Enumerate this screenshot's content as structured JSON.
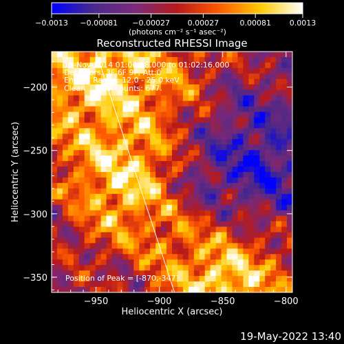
{
  "chart_data": {
    "type": "heatmap",
    "title": "Reconstructed RHESSI Image",
    "xlabel": "Heliocentric X (arcsec)",
    "ylabel": "Heliocentric Y (arcsec)",
    "xlim": [
      -985,
      -795
    ],
    "ylim": [
      -362,
      -172
    ],
    "xticks": [
      {
        "value": -950,
        "label": "−950"
      },
      {
        "value": -900,
        "label": "−900"
      },
      {
        "value": -850,
        "label": "−850"
      },
      {
        "value": -800,
        "label": "−800"
      }
    ],
    "yticks": [
      {
        "value": -200,
        "label": "−200"
      },
      {
        "value": -250,
        "label": "−250"
      },
      {
        "value": -300,
        "label": "−300"
      },
      {
        "value": -350,
        "label": "−350"
      }
    ],
    "colorbar": {
      "range": [
        -0.0013,
        0.0013
      ],
      "ticks": [
        {
          "value": -0.0013,
          "label": "−0.0013"
        },
        {
          "value": -0.00081,
          "label": "−0.00081"
        },
        {
          "value": -0.00027,
          "label": "−0.00027"
        },
        {
          "value": 0.00027,
          "label": "0.00027"
        },
        {
          "value": 0.00081,
          "label": "0.00081"
        },
        {
          "value": 0.0013,
          "label": "0.0013"
        }
      ],
      "unit_label": "(photons cm⁻² s⁻¹ asec⁻²)",
      "colors": [
        "#0000ff",
        "#4a2a8c",
        "#7a2a7a",
        "#b81a1a",
        "#ff5a00",
        "#ffcc00",
        "#ffffff"
      ]
    },
    "annotations": {
      "time_range": "15-Nov-2014 01:00:48.000 to 01:02:16.000",
      "detectors": "Detectors: 3F 6F 9F, Att:0",
      "energy_range": "Energy Range: 12.0 - 25.0 keV",
      "clean": "Clean    Total counts: 677.",
      "peak": "Position of Peak = [-870,-347]"
    },
    "limb_line": {
      "x": [
        -950,
        -888
      ],
      "y": [
        -172,
        -362
      ]
    },
    "grid": false,
    "legend": "none"
  },
  "footer": {
    "timestamp": "19-May-2022 13:40"
  }
}
